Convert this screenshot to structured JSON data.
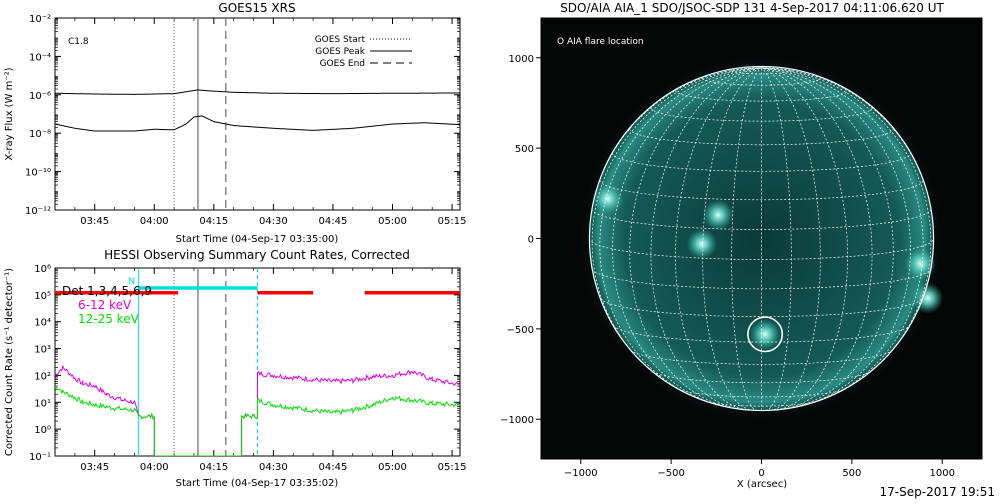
{
  "footer_timestamp": "17-Sep-2017 19:51",
  "chart_data": [
    {
      "type": "line",
      "title": "GOES15 XRS",
      "ylabel": "X-ray Flux (W m⁻²)",
      "xlabel": "Start Time (04-Sep-17 03:35:00)",
      "yscale": "log",
      "ylim": [
        1e-12,
        0.01
      ],
      "ytick_exponents": [
        -12,
        -10,
        -8,
        -6,
        -4,
        -2
      ],
      "xlim_minutes": [
        "03:35",
        "05:17"
      ],
      "xticks": [
        "03:45",
        "04:00",
        "04:15",
        "04:30",
        "04:45",
        "05:00",
        "05:15"
      ],
      "class_label": "C1.8",
      "legend_position": "top-right",
      "legend": [
        {
          "label": "GOES Start",
          "style": "dotted"
        },
        {
          "label": "GOES Peak",
          "style": "solid"
        },
        {
          "label": "GOES End",
          "style": "dashed"
        }
      ],
      "event_times": {
        "start": "04:05",
        "peak": "04:11",
        "end": "04:18"
      },
      "series": [
        {
          "channel": "long",
          "color": "#000000",
          "points": [
            [
              "03:35",
              1.2e-06
            ],
            [
              "03:45",
              1.1e-06
            ],
            [
              "03:55",
              1.05e-06
            ],
            [
              "04:00",
              1.1e-06
            ],
            [
              "04:05",
              1.15e-06
            ],
            [
              "04:09",
              1.55e-06
            ],
            [
              "04:11",
              1.8e-06
            ],
            [
              "04:14",
              1.6e-06
            ],
            [
              "04:20",
              1.35e-06
            ],
            [
              "04:30",
              1.2e-06
            ],
            [
              "04:45",
              1.15e-06
            ],
            [
              "05:00",
              1.2e-06
            ],
            [
              "05:17",
              1.25e-06
            ]
          ]
        },
        {
          "channel": "short",
          "color": "#000000",
          "points": [
            [
              "03:35",
              3e-08
            ],
            [
              "03:40",
              1.8e-08
            ],
            [
              "03:45",
              1.3e-08
            ],
            [
              "03:55",
              1.3e-08
            ],
            [
              "04:00",
              1.6e-08
            ],
            [
              "04:05",
              1.5e-08
            ],
            [
              "04:08",
              3e-08
            ],
            [
              "04:10",
              7e-08
            ],
            [
              "04:12",
              8e-08
            ],
            [
              "04:15",
              4e-08
            ],
            [
              "04:20",
              2.5e-08
            ],
            [
              "04:30",
              1.8e-08
            ],
            [
              "04:40",
              1.4e-08
            ],
            [
              "04:50",
              1.8e-08
            ],
            [
              "05:00",
              3e-08
            ],
            [
              "05:08",
              3.5e-08
            ],
            [
              "05:17",
              2.8e-08
            ]
          ]
        }
      ]
    },
    {
      "type": "line",
      "title": "HESSI Observing Summary Count Rates, Corrected",
      "ylabel": "Corrected Count Rate (s⁻¹ detector⁻¹)",
      "xlabel": "Start Time (04-Sep-17 03:35:02)",
      "yscale": "log",
      "ylim": [
        0.1,
        1000000.0
      ],
      "ytick_exponents": [
        -1,
        0,
        1,
        2,
        3,
        4,
        5,
        6
      ],
      "xticks": [
        "03:45",
        "04:00",
        "04:15",
        "04:30",
        "04:45",
        "05:00",
        "05:15"
      ],
      "legend": [
        {
          "label": "Det 1,3,4,5,6,9",
          "color": "#000000"
        },
        {
          "label": "6-12 keV",
          "color": "#e000e0"
        },
        {
          "label": "12-25 keV",
          "color": "#00e000"
        }
      ],
      "flag_bars": [
        {
          "color": "#ff0000",
          "from": "03:35",
          "to": "04:06",
          "level": 120000.0
        },
        {
          "color": "#ff0000",
          "from": "04:26",
          "to": "04:40",
          "level": 120000.0
        },
        {
          "color": "#ff0000",
          "from": "04:53",
          "to": "05:17",
          "level": 120000.0
        },
        {
          "color": "#00e0e0",
          "from": "03:56",
          "to": "04:26",
          "level": 180000.0
        }
      ],
      "cyan_marker_label": "N",
      "night_lines": {
        "start": "03:56",
        "end": "04:26"
      },
      "event_times": {
        "start": "04:05",
        "peak": "04:11",
        "end": "04:18"
      },
      "series": [
        {
          "name": "6-12 keV",
          "color": "#e000e0",
          "points": [
            [
              "03:35",
              100
            ],
            [
              "03:37",
              200
            ],
            [
              "03:40",
              80
            ],
            [
              "03:42",
              50
            ],
            [
              "03:45",
              40
            ],
            [
              "03:48",
              20
            ],
            [
              "03:52",
              12
            ],
            [
              "03:55",
              10
            ],
            [
              "03:56",
              3
            ],
            [
              "04:00",
              3
            ],
            [
              "04:00",
              0.1
            ],
            [
              "04:22",
              0.1
            ],
            [
              "04:22",
              3
            ],
            [
              "04:26",
              3
            ],
            [
              "04:26",
              120
            ],
            [
              "04:30",
              100
            ],
            [
              "04:40",
              70
            ],
            [
              "04:45",
              60
            ],
            [
              "04:50",
              65
            ],
            [
              "04:55",
              90
            ],
            [
              "05:00",
              100
            ],
            [
              "05:05",
              140
            ],
            [
              "05:10",
              70
            ],
            [
              "05:17",
              45
            ]
          ]
        },
        {
          "name": "12-25 keV",
          "color": "#00e000",
          "points": [
            [
              "03:35",
              40
            ],
            [
              "03:37",
              25
            ],
            [
              "03:40",
              15
            ],
            [
              "03:42",
              10
            ],
            [
              "03:45",
              8
            ],
            [
              "03:50",
              6
            ],
            [
              "03:55",
              5
            ],
            [
              "03:56",
              3
            ],
            [
              "04:00",
              3
            ],
            [
              "04:00",
              0.1
            ],
            [
              "04:22",
              0.1
            ],
            [
              "04:22",
              3
            ],
            [
              "04:26",
              3
            ],
            [
              "04:26",
              12
            ],
            [
              "04:30",
              8
            ],
            [
              "04:40",
              5
            ],
            [
              "04:45",
              4
            ],
            [
              "04:50",
              5
            ],
            [
              "04:55",
              8
            ],
            [
              "05:00",
              15
            ],
            [
              "05:05",
              12
            ],
            [
              "05:10",
              9
            ],
            [
              "05:17",
              8
            ]
          ]
        }
      ]
    },
    {
      "type": "image",
      "title": "SDO/AIA AIA_1 SDO/JSOC-SDP 131  4-Sep-2017 04:11:06.620 UT",
      "xlabel": "X (arcsec)",
      "xlim": [
        -1220,
        1220
      ],
      "ylim": [
        -1220,
        1220
      ],
      "xticks": [
        -1000,
        -500,
        0,
        500,
        1000
      ],
      "yticks": [
        -1000,
        -500,
        0,
        500,
        1000
      ],
      "solar_radius_arcsec": 952,
      "flare_location_arcsec": [
        20,
        -530
      ],
      "flare_circle_radius_arcsec": 95,
      "legend": "O AIA flare location",
      "grid_step_deg": 10,
      "active_regions_arcsec": [
        [
          -850,
          220
        ],
        [
          -240,
          130
        ],
        [
          -330,
          -30
        ],
        [
          20,
          -530
        ],
        [
          880,
          -140
        ],
        [
          920,
          -330
        ]
      ]
    }
  ]
}
